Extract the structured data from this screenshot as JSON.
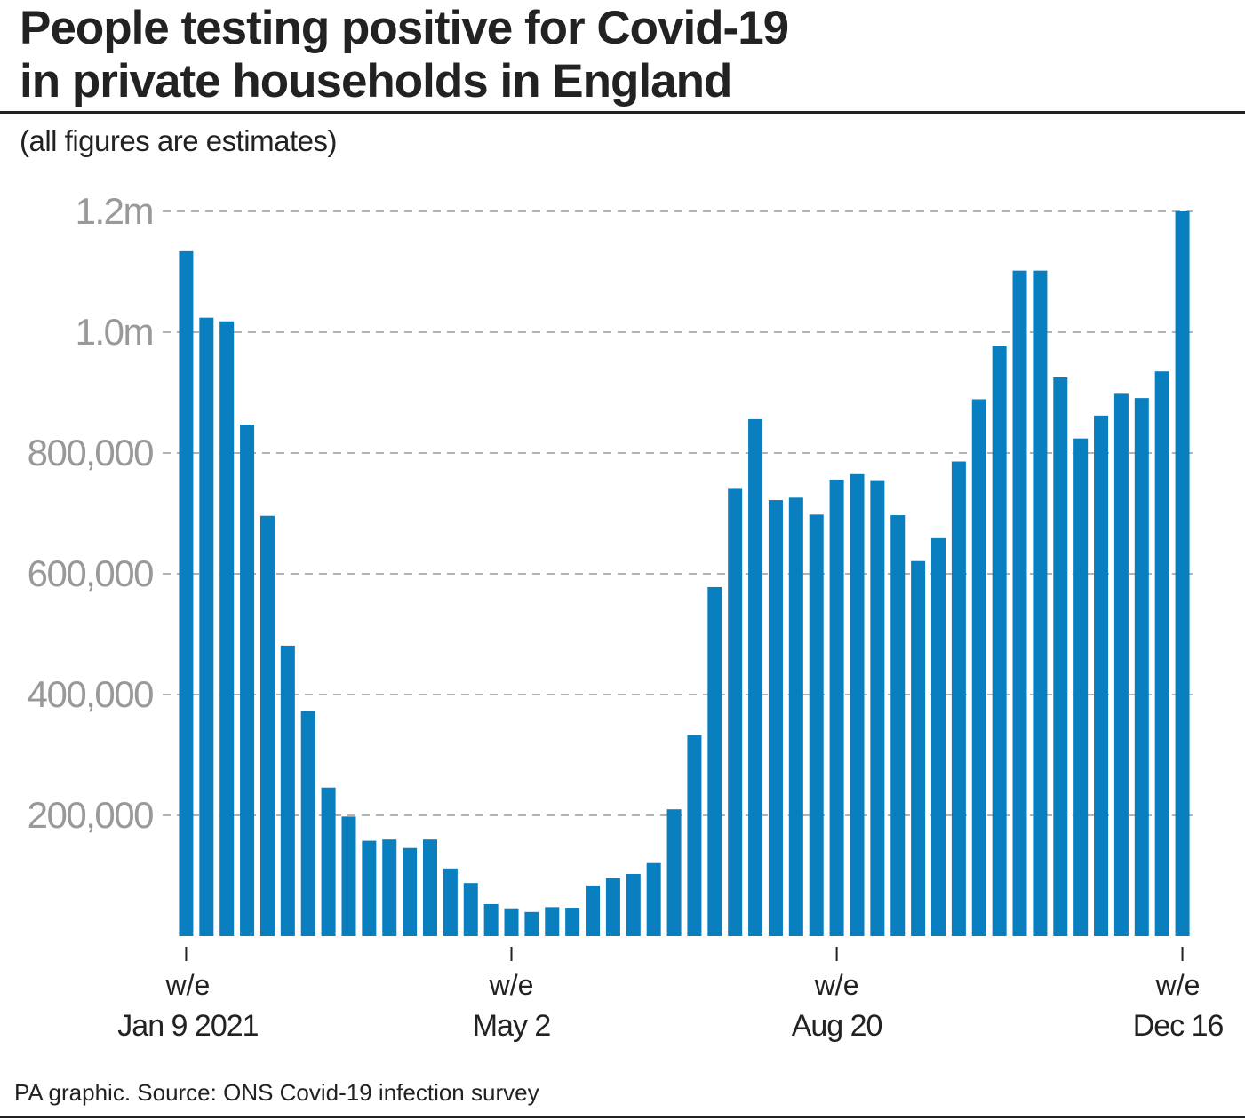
{
  "header": {
    "title_line1": "People testing positive for Covid-19",
    "title_line2": "in private households in England",
    "subtitle": "(all figures are estimates)"
  },
  "footer": {
    "source": "PA graphic. Source: ONS Covid-19 infection survey"
  },
  "colors": {
    "bar": "#0a7fc0",
    "grid": "#999999",
    "tick_label": "#999999",
    "text": "#222222"
  },
  "chart_data": {
    "type": "bar",
    "title": "People testing positive for Covid-19 in private households in England",
    "subtitle": "(all figures are estimates)",
    "xlabel": "",
    "ylabel": "",
    "ylim": [
      0,
      1200000
    ],
    "grid": true,
    "yticks": [
      {
        "value": 200000,
        "label": "200,000"
      },
      {
        "value": 400000,
        "label": "400,000"
      },
      {
        "value": 600000,
        "label": "600,000"
      },
      {
        "value": 800000,
        "label": "800,000"
      },
      {
        "value": 1000000,
        "label": "1.0m"
      },
      {
        "value": 1200000,
        "label": "1.2m"
      }
    ],
    "xticks": [
      {
        "index": 0,
        "line1": "w/e",
        "line2": "Jan 9 2021"
      },
      {
        "index": 16,
        "line1": "w/e",
        "line2": "May 2"
      },
      {
        "index": 32,
        "line1": "w/e",
        "line2": "Aug 20"
      },
      {
        "index": 49,
        "line1": "w/e",
        "line2": "Dec 16"
      }
    ],
    "values": [
      1134000,
      1024000,
      1018000,
      847000,
      696000,
      481000,
      373000,
      246000,
      198000,
      158000,
      160000,
      146000,
      160000,
      112000,
      88000,
      53000,
      46000,
      40000,
      48000,
      47000,
      84000,
      96000,
      103000,
      121000,
      210000,
      333000,
      578000,
      742000,
      856000,
      722000,
      726000,
      698000,
      756000,
      765000,
      755000,
      697000,
      621000,
      659000,
      786000,
      889000,
      977000,
      1102000,
      1102000,
      925000,
      824000,
      862000,
      898000,
      891000,
      935000,
      1200000
    ]
  }
}
